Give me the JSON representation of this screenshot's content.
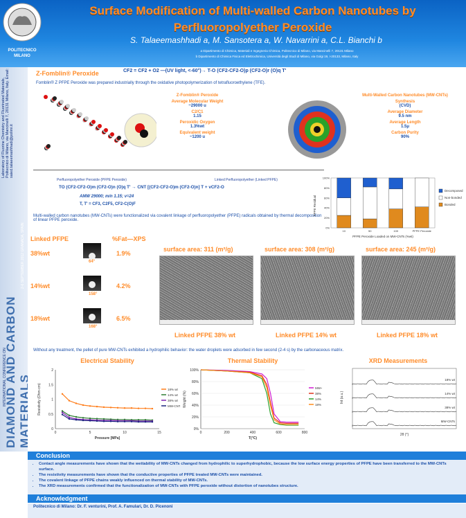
{
  "header": {
    "title_line1": "Surface Modification of Multi-walled Carbon Nanotubes by",
    "title_line2": "Perfluoropolyether Peroxide",
    "authors": "S. Talaeemashhadi a, M. Sansotera a, W. Navarrini a, C.L. Bianchi b",
    "aff_a": "a Dipartimento di Chimica, Materiali e Ingegneria Chimica, Politecnico di Milano, via Mancinelli 7, 20131 Milano",
    "aff_b": "b Dipartimento di Chimica Fisica ed Elettrochimica, Università degli Studi di Milano, via Golgi 19, I-20133, Milano, Italy",
    "logo_text": "POLITECNICO MILANO"
  },
  "sidebar": {
    "contact": "Laboratory of Fluorine Chemistry and Fluorinated Materials, Politecnico di Milano, via Mancinelli 7, 20131 Milano, Italy. Email: saied.talaeemashhadi@polimi.it",
    "date": "2-6 SEPTEMBER 2012 GRANADA, SPAIN",
    "conf": "INTERNATIONAL CONFERENCE ON",
    "dm": "DIAMOND AND CARBON MATERIALS"
  },
  "peroxide": {
    "label": "Z-Fomblin® Peroxide",
    "reaction": "CF2 = CF2 + O2 —(UV light, <-60°)→ T-O (CF2-CF2-O)p (CF2-O)r (O)q T'",
    "desc": "Fomblin® Z PFPE Peroxide was prepared industrially through the oxidative photopolymerization of tetrafluoroethylene (TFE).",
    "props": [
      {
        "k": "Z-Fomblin® Peroxide",
        "v": ""
      },
      {
        "k": "Average Molecular Weight",
        "v": "~29000 u"
      },
      {
        "k": "C2/C1",
        "v": "1.15"
      },
      {
        "k": "Peroxidic Oxygen",
        "v": "1.3%wt"
      },
      {
        "k": "Equivalent weight",
        "v": "~1200 u"
      }
    ]
  },
  "mwcnt": {
    "props": [
      {
        "k": "Multi-Walled Carbon Nanotubes (MW-CNTs)",
        "v": ""
      },
      {
        "k": "Synthesis",
        "v": "(CVD)"
      },
      {
        "k": "Average Diameter",
        "v": "9.5 nm"
      },
      {
        "k": "Average Length",
        "v": "1.5μ"
      },
      {
        "k": "Carbon Purity",
        "v": "90%"
      }
    ]
  },
  "reaction2": {
    "left_label": "Perfluoropolyether Peroxide (PFPE Peroxide)",
    "right_label": "Linked Perfluoropolyether (Linked PFPE)",
    "formula": "TO (CF2-CF2-O)m (CF2-O)n (O)q T'  →  CNT [(CF2-CF2-O)m (CF2-O)n] T + vCF2-O",
    "amw": "AMW 29000; m/n 1.15; v=24",
    "t": "T, T' = CF3, C2F5, CF2-C(O)F",
    "desc": "Multi-walled carbon nanotubes (MW-CNTs) were functionalized via covalent linkage of perfluoropolyether (PFPE) radicals obtained by thermal decomposition of linear PFPE peroxide."
  },
  "linked": {
    "header_left": "Linked PFPE",
    "header_right": "%Fat—XPS",
    "rows": [
      {
        "pfpe": "38%wt",
        "angle": "64°",
        "xps": "1.9%"
      },
      {
        "pfpe": "14%wt",
        "angle": "158°",
        "xps": "4.2%"
      },
      {
        "pfpe": "18%wt",
        "angle": "168°",
        "xps": "6.5%"
      }
    ]
  },
  "sem": [
    {
      "area": "surface area: 311 (m²/g)",
      "caption": "Linked PFPE 38% wt"
    },
    {
      "area": "surface area: 308 (m²/g)",
      "caption": "Linked PFPE 14% wt"
    },
    {
      "area": "surface area: 245 (m²/g)",
      "caption": "Linked PFPE 18% wt"
    }
  ],
  "treatment_note": "Without any treatment, the pellet of pure MW-CNTs exhibited a hydrophilic behavior: the water droplets were adsorbed in few second (2-4 s) by the carbonaceous matrix.",
  "chart_data": [
    {
      "type": "bar",
      "stacked": true,
      "categories": [
        "10",
        "50",
        "100",
        "PFPE Peroxide"
      ],
      "series": [
        {
          "name": "Decomposed",
          "values": [
            40,
            18,
            22,
            0
          ],
          "color": "#1f5fcf"
        },
        {
          "name": "Non-bonded",
          "values": [
            35,
            64,
            40,
            58
          ],
          "color": "#ffffff"
        },
        {
          "name": "Bonded",
          "values": [
            25,
            18,
            38,
            42
          ],
          "color": "#e08a1e"
        }
      ],
      "xlabel": "PFPE Peroxide Loaded on MW-CNTs (%wt)",
      "ylabel": "PFPE Residual",
      "ylim": [
        0,
        100
      ],
      "yticks": [
        "0%",
        "20%",
        "40%",
        "60%",
        "80%",
        "100%"
      ]
    },
    {
      "type": "line",
      "title": "Electrical Stability",
      "xlabel": "Pressure [MPa]",
      "ylabel": "Resistivity (Ohm·cm)",
      "ylim": [
        0,
        2
      ],
      "xlim": [
        0,
        15
      ],
      "x": [
        1,
        2,
        3,
        4,
        5,
        6,
        7,
        8,
        9,
        10,
        11,
        12,
        13,
        14
      ],
      "series": [
        {
          "name": "18% wt",
          "color": "#ff7d1a",
          "values": [
            1.18,
            0.95,
            0.86,
            0.8,
            0.77,
            0.75,
            0.73,
            0.72,
            0.71,
            0.7,
            0.7,
            0.69,
            0.69,
            0.68
          ]
        },
        {
          "name": "14% wt",
          "color": "#2e7d32",
          "values": [
            0.6,
            0.45,
            0.4,
            0.37,
            0.35,
            0.34,
            0.33,
            0.32,
            0.31,
            0.31,
            0.3,
            0.3,
            0.3,
            0.29
          ]
        },
        {
          "name": "38% wt",
          "color": "#7e22b0",
          "values": [
            0.55,
            0.38,
            0.33,
            0.31,
            0.3,
            0.29,
            0.28,
            0.28,
            0.27,
            0.27,
            0.27,
            0.26,
            0.26,
            0.26
          ]
        },
        {
          "name": "MW-CNTs",
          "color": "#1a237e",
          "values": [
            0.48,
            0.33,
            0.3,
            0.28,
            0.27,
            0.26,
            0.25,
            0.25,
            0.24,
            0.24,
            0.24,
            0.23,
            0.23,
            0.23
          ]
        }
      ],
      "xticks": [
        "0",
        "5",
        "10",
        "15"
      ],
      "yticks": [
        "0",
        "0.5",
        "1",
        "1.5",
        "2"
      ]
    },
    {
      "type": "line",
      "title": "Thermal Stability",
      "xlabel": "T(°C)",
      "ylabel": "Weight (%)",
      "ylim": [
        0,
        100
      ],
      "xlim": [
        0,
        850
      ],
      "x": [
        0,
        200,
        400,
        500,
        540,
        570,
        600,
        650,
        700,
        800
      ],
      "series": [
        {
          "name": "MW-CNTs",
          "color": "#d01ad0",
          "values": [
            100,
            99,
            97,
            93,
            85,
            60,
            25,
            12,
            11,
            11
          ]
        },
        {
          "name": "38% wt",
          "color": "#e0321e",
          "values": [
            100,
            98,
            96,
            90,
            75,
            45,
            18,
            10,
            9,
            9
          ]
        },
        {
          "name": "14% wt",
          "color": "#2aa12a",
          "values": [
            100,
            98,
            95,
            85,
            60,
            25,
            10,
            7,
            6,
            6
          ]
        },
        {
          "name": "18% wt",
          "color": "#ff8c1a",
          "values": [
            100,
            98,
            95,
            88,
            70,
            40,
            15,
            8,
            7,
            7
          ]
        }
      ],
      "xticks": [
        "0",
        "200",
        "400",
        "600",
        "800"
      ],
      "yticks": [
        "0%",
        "20%",
        "40%",
        "60%",
        "80%",
        "100%"
      ]
    },
    {
      "type": "line",
      "title": "XRD Measurements",
      "xlabel": "2θ (°)",
      "ylabel": "Int (a.u.)",
      "series": [
        {
          "name": "18% wt"
        },
        {
          "name": "14% wt"
        },
        {
          "name": "38% wt"
        },
        {
          "name": "MW-CNTs"
        }
      ]
    }
  ],
  "conclusion": {
    "title": "Conclusion",
    "items": [
      "Contact angle measurements have shown that the wettability of MW-CNTs changed from hydrophilic to superhydrophobic, because the low surface energy properties of PFPE have been transferred to the MW-CNTs surface.",
      "The resistivity measurements have shown that the conductive properties of PFPE treated MW-CNTs were maintained.",
      "The covalent linkage of PFPE chains weakly influenced on thermal stability of MW-CNTs.",
      "The XRD measurements confirmed that the functionalization of MW-CNTs with PFPE peroxide without distortion of nanotubes structure."
    ]
  },
  "ack": {
    "title": "Acknowledgment",
    "text": "Politecnico di Milano: Dr. F. venturini, Prof. A. Famulari, Dr. D. Picenoni"
  }
}
